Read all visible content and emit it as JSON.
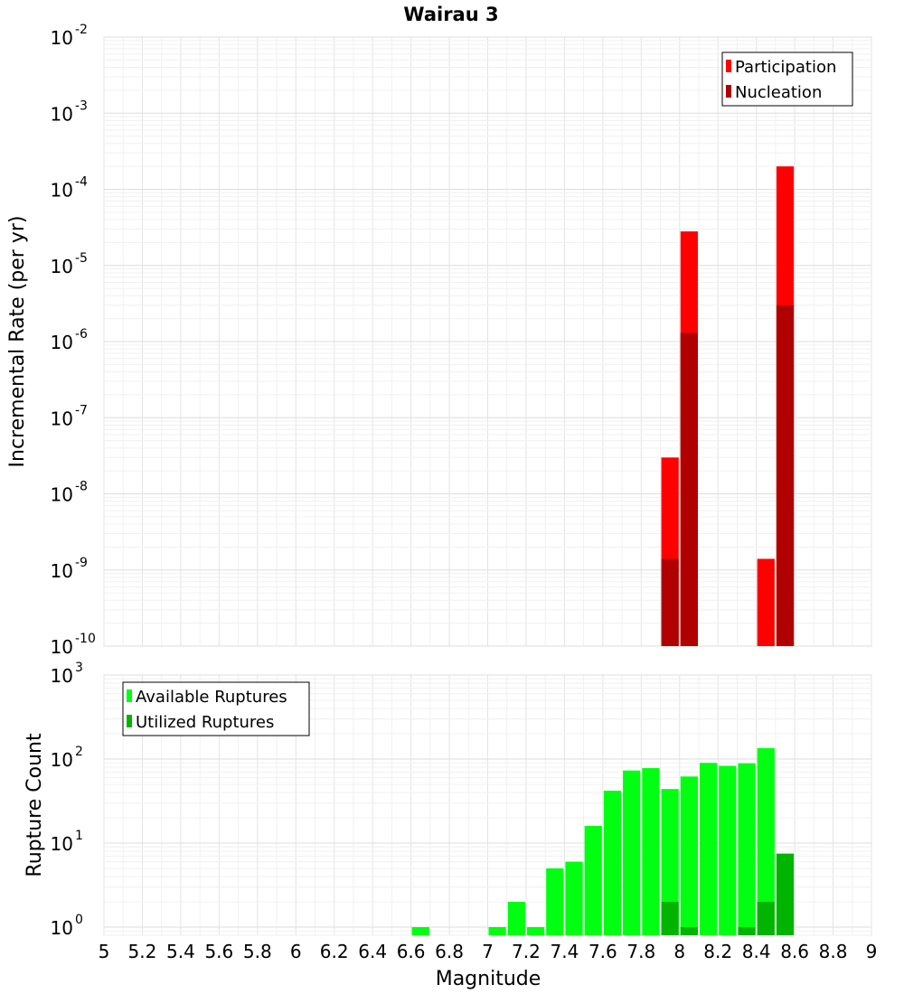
{
  "chart_data": {
    "title": "Wairau 3",
    "xlabel": "Magnitude",
    "xlim": [
      5,
      9
    ],
    "xticks": [
      "5",
      "5.2",
      "5.4",
      "5.6",
      "5.8",
      "6",
      "6.2",
      "6.4",
      "6.6",
      "6.8",
      "7",
      "7.2",
      "7.4",
      "7.6",
      "7.8",
      "8",
      "8.2",
      "8.4",
      "8.6",
      "8.8",
      "9"
    ],
    "bin_width": 0.1,
    "grid": true,
    "panels": [
      {
        "type": "bar",
        "ylabel": "Incremental Rate (per yr)",
        "yscale": "log",
        "ylim": [
          1e-10,
          0.01
        ],
        "yticks": [
          {
            "base": "10",
            "exp": "-2"
          },
          {
            "base": "10",
            "exp": "-3"
          },
          {
            "base": "10",
            "exp": "-4"
          },
          {
            "base": "10",
            "exp": "-5"
          },
          {
            "base": "10",
            "exp": "-6"
          },
          {
            "base": "10",
            "exp": "-7"
          },
          {
            "base": "10",
            "exp": "-8"
          },
          {
            "base": "10",
            "exp": "-9"
          },
          {
            "base": "10",
            "exp": "-10"
          }
        ],
        "legend_position": "top-right",
        "series": [
          {
            "name": "Participation",
            "color": "#ff0000",
            "points": [
              [
                7.95,
                3e-08
              ],
              [
                8.05,
                2.8e-05
              ],
              [
                8.45,
                1.4e-09
              ],
              [
                8.55,
                0.0002
              ]
            ]
          },
          {
            "name": "Nucleation",
            "color": "#b00000",
            "points": [
              [
                7.95,
                1.4e-09
              ],
              [
                8.05,
                1.3e-06
              ],
              [
                8.55,
                3e-06
              ]
            ]
          }
        ]
      },
      {
        "type": "bar",
        "ylabel": "Rupture Count",
        "yscale": "log",
        "ylim": [
          0.8,
          1000
        ],
        "yticks": [
          {
            "base": "10",
            "exp": "3"
          },
          {
            "base": "10",
            "exp": "2"
          },
          {
            "base": "10",
            "exp": "1"
          },
          {
            "base": "10",
            "exp": "0"
          }
        ],
        "legend_position": "top-left",
        "series": [
          {
            "name": "Available Ruptures",
            "color": "#00ff10",
            "points": [
              [
                6.65,
                1
              ],
              [
                7.05,
                1
              ],
              [
                7.15,
                2
              ],
              [
                7.25,
                1
              ],
              [
                7.35,
                5
              ],
              [
                7.45,
                6
              ],
              [
                7.55,
                16
              ],
              [
                7.65,
                42
              ],
              [
                7.75,
                73
              ],
              [
                7.85,
                78
              ],
              [
                7.95,
                44
              ],
              [
                8.05,
                62
              ],
              [
                8.15,
                90
              ],
              [
                8.25,
                83
              ],
              [
                8.35,
                89
              ],
              [
                8.45,
                135
              ]
            ]
          },
          {
            "name": "Utilized Ruptures",
            "color": "#00b400",
            "points": [
              [
                7.95,
                2
              ],
              [
                8.05,
                1
              ],
              [
                8.35,
                1
              ],
              [
                8.45,
                2
              ],
              [
                8.55,
                7.5
              ]
            ]
          }
        ]
      }
    ]
  }
}
